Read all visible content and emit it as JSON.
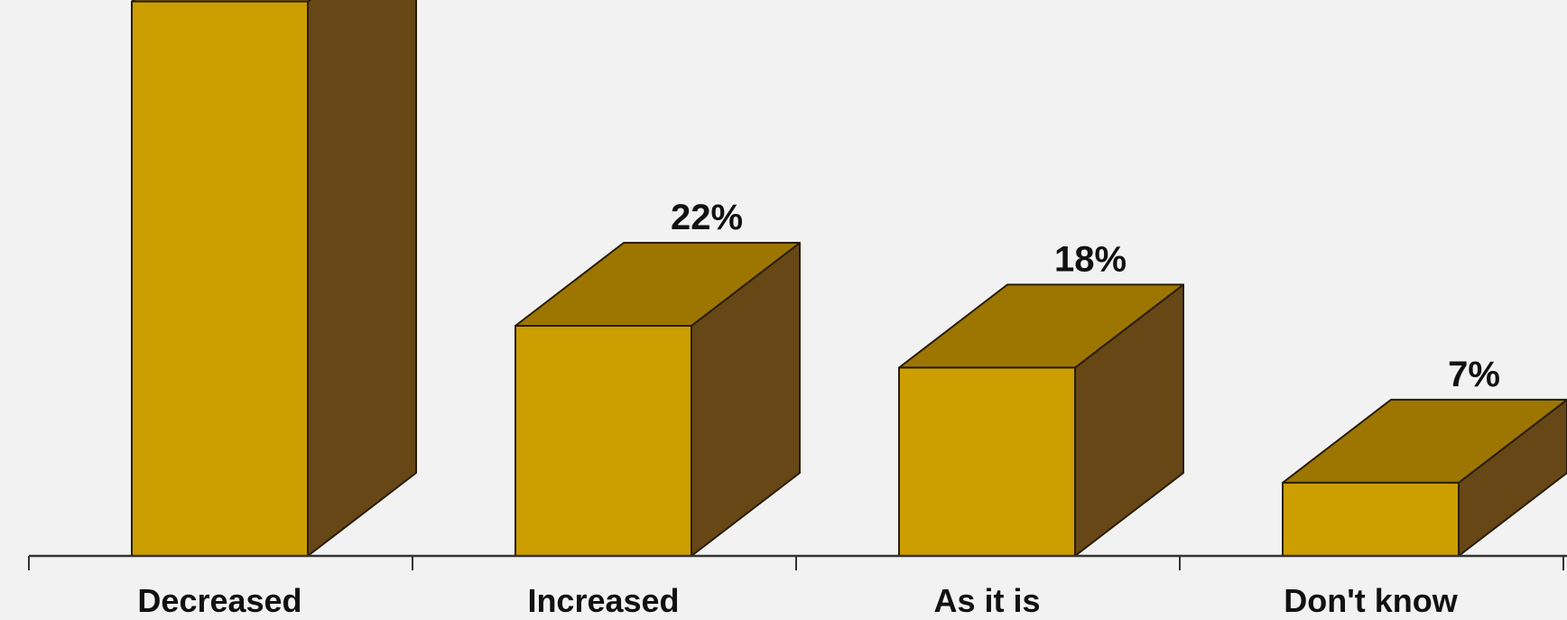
{
  "chart_data": {
    "type": "bar",
    "categories": [
      "Decreased",
      "Increased",
      "As it is",
      "Don't know"
    ],
    "values": [
      53,
      22,
      18,
      7
    ],
    "value_labels": [
      "",
      "22%",
      "18%",
      "7%"
    ],
    "title": "",
    "xlabel": "",
    "ylabel": "",
    "ylim": [
      0,
      60
    ],
    "grid": false,
    "style": "3d-box",
    "colors": {
      "front": "#cc9e00",
      "top": "#9c7600",
      "side": "#664715",
      "outline": "#2a1c05",
      "background": "#f2f2f2"
    }
  }
}
